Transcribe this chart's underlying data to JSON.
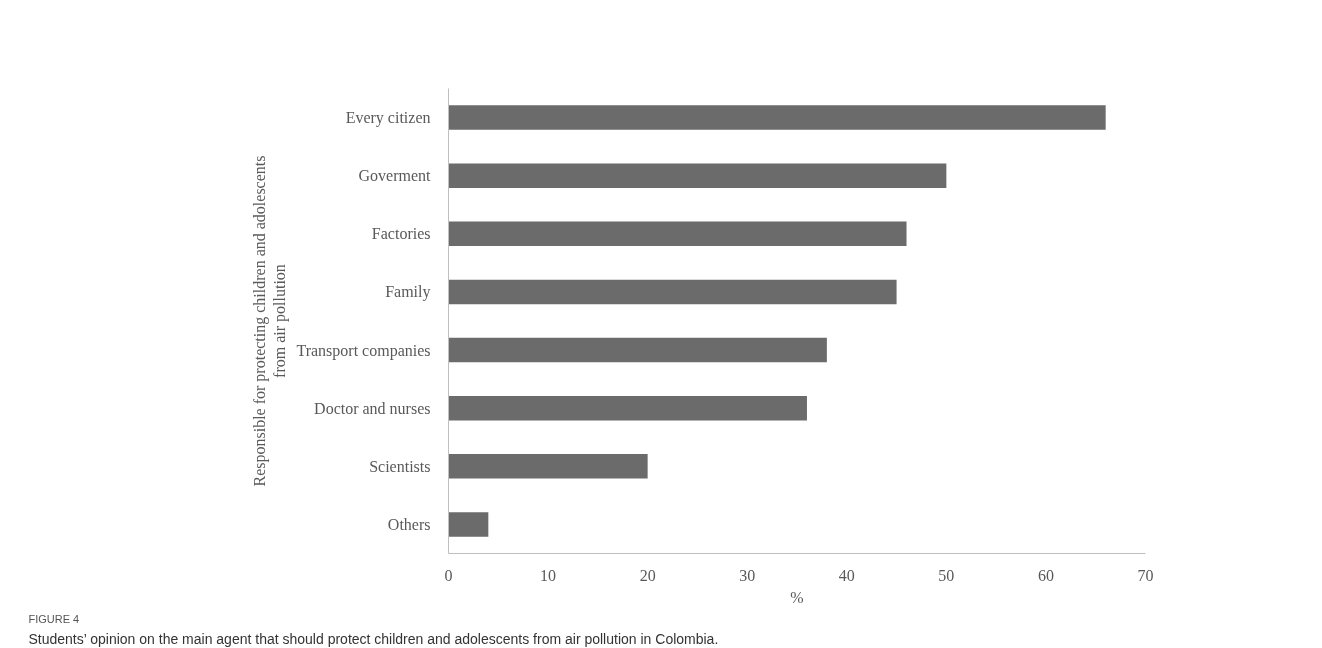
{
  "chart_data": {
    "type": "bar",
    "orientation": "horizontal",
    "categories": [
      "Every citizen",
      "Goverment",
      "Factories",
      "Family",
      "Transport companies",
      "Doctor and nurses",
      "Scientists",
      "Others"
    ],
    "values": [
      66,
      50,
      46,
      45,
      38,
      36,
      20,
      4
    ],
    "color": "#6b6b6b",
    "xlim": [
      0,
      70
    ],
    "xticks": [
      0,
      10,
      20,
      30,
      40,
      50,
      60,
      70
    ],
    "xlabel": "%",
    "ylabel": "Responsible for protecting children and adolescents from air pollution",
    "annotations": [
      "FIGURE 4",
      "Students’ opinion on the main agent that should protect children and adolescents from air pollution in Colombia."
    ]
  }
}
